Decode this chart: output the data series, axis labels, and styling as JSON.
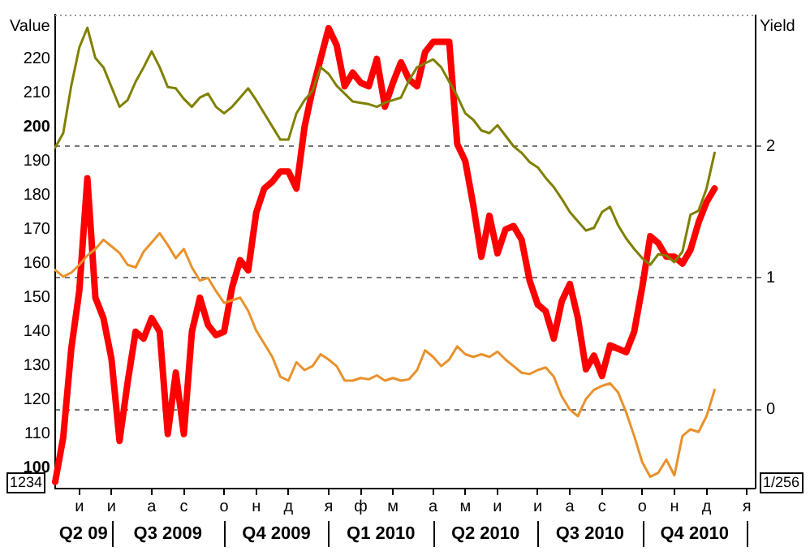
{
  "chart_data": {
    "type": "line",
    "ylabel": "Value",
    "y2label": "Yield",
    "categories": [
      null,
      null,
      null,
      "и",
      null,
      null,
      null,
      "и",
      null,
      null,
      null,
      null,
      "а",
      null,
      null,
      null,
      "с",
      null,
      null,
      null,
      null,
      "о",
      null,
      null,
      null,
      "н",
      null,
      null,
      null,
      "д",
      null,
      null,
      null,
      null,
      "я",
      null,
      null,
      null,
      "ф",
      null,
      null,
      null,
      "м",
      null,
      null,
      null,
      null,
      "а",
      null,
      null,
      null,
      "м",
      null,
      null,
      null,
      "и",
      null,
      null,
      null,
      null,
      "и",
      null,
      null,
      null,
      "а",
      null,
      null,
      null,
      "с",
      null,
      null,
      null,
      null,
      "о",
      null,
      null,
      null,
      "н",
      null,
      null,
      null,
      "д",
      null,
      null,
      null,
      null,
      "я",
      null
    ],
    "ylim": [
      94,
      233
    ],
    "yticks": [
      100,
      110,
      120,
      130,
      140,
      150,
      160,
      170,
      180,
      190,
      200,
      210,
      220
    ],
    "y2lim": [
      -0.6,
      3.0
    ],
    "y2ticks": [
      0,
      1,
      2
    ],
    "grid": "y2",
    "legend": false,
    "marker": "none",
    "line_style": "solid",
    "annotations": [
      "1234",
      "1/256",
      "Q2 09",
      "Q3 2009",
      "Q4 2009",
      "Q1 2010",
      "Q2 2010",
      "Q3 2010",
      "Q4 2010"
    ],
    "series": [
      {
        "color": "#ff0000",
        "axis": "y",
        "values": [
          96,
          109,
          135,
          152,
          185,
          150,
          144,
          132,
          108,
          125,
          140,
          138,
          144,
          140,
          110,
          128,
          110,
          140,
          150,
          142,
          139,
          140,
          153,
          161,
          158,
          175,
          182,
          184,
          187,
          187,
          182,
          200,
          211,
          220,
          229,
          224,
          212,
          216,
          213,
          212,
          220,
          206,
          213,
          219,
          214,
          212,
          222,
          225,
          225,
          225,
          195,
          190,
          177,
          162,
          174,
          163,
          170,
          171,
          167,
          155,
          148,
          146,
          138,
          149,
          154,
          144,
          129,
          133,
          127,
          136,
          135,
          134,
          140,
          153,
          168,
          166,
          162,
          162,
          160,
          164,
          172,
          178,
          182,
          null,
          null,
          null,
          null,
          null
        ]
      },
      {
        "color": "#808000",
        "axis": "y2",
        "values": [
          1.99,
          2.1,
          2.46,
          2.75,
          2.9,
          2.67,
          2.6,
          2.45,
          2.3,
          2.35,
          2.49,
          2.6,
          2.72,
          2.6,
          2.45,
          2.44,
          2.36,
          2.3,
          2.37,
          2.4,
          2.3,
          2.25,
          2.3,
          2.37,
          2.44,
          2.35,
          2.25,
          2.15,
          2.05,
          2.05,
          2.25,
          2.35,
          2.42,
          2.6,
          2.55,
          2.46,
          2.4,
          2.34,
          2.33,
          2.32,
          2.3,
          2.33,
          2.35,
          2.37,
          2.5,
          2.6,
          2.63,
          2.66,
          2.6,
          2.49,
          2.38,
          2.25,
          2.2,
          2.12,
          2.1,
          2.16,
          2.08,
          2.0,
          1.95,
          1.88,
          1.84,
          1.76,
          1.69,
          1.6,
          1.5,
          1.43,
          1.36,
          1.38,
          1.5,
          1.54,
          1.4,
          1.3,
          1.22,
          1.15,
          1.1,
          1.18,
          1.17,
          1.12,
          1.2,
          1.48,
          1.51,
          1.68,
          1.95,
          null,
          null,
          null,
          null,
          null
        ]
      },
      {
        "color": "#e8922c",
        "axis": "y2",
        "values": [
          1.06,
          1.01,
          1.04,
          1.1,
          1.17,
          1.22,
          1.29,
          1.24,
          1.19,
          1.1,
          1.08,
          1.2,
          1.27,
          1.34,
          1.25,
          1.15,
          1.22,
          1.08,
          0.98,
          1.0,
          0.9,
          0.81,
          0.83,
          0.85,
          0.75,
          0.6,
          0.5,
          0.4,
          0.25,
          0.22,
          0.36,
          0.3,
          0.33,
          0.42,
          0.38,
          0.33,
          0.22,
          0.22,
          0.24,
          0.23,
          0.26,
          0.22,
          0.24,
          0.22,
          0.23,
          0.3,
          0.45,
          0.4,
          0.33,
          0.38,
          0.48,
          0.42,
          0.4,
          0.42,
          0.4,
          0.44,
          0.38,
          0.33,
          0.28,
          0.27,
          0.3,
          0.32,
          0.25,
          0.1,
          0.0,
          -0.05,
          0.08,
          0.15,
          0.18,
          0.2,
          0.13,
          -0.02,
          -0.2,
          -0.4,
          -0.51,
          -0.48,
          -0.38,
          -0.5,
          -0.2,
          -0.15,
          -0.17,
          -0.05,
          0.15,
          null,
          null,
          null,
          null,
          null
        ]
      }
    ]
  }
}
